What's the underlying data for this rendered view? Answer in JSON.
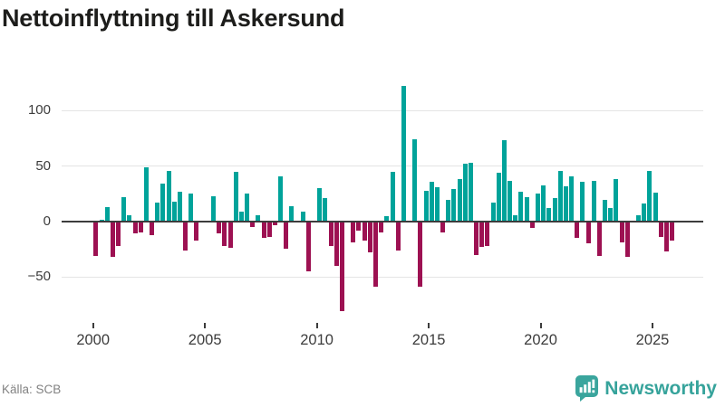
{
  "title": "Nettoinflyttning till Askersund",
  "source": "Källa: SCB",
  "brand": {
    "name": "Newsworthy"
  },
  "colors": {
    "positive_bar": "#00a39a",
    "negative_bar": "#9d1152",
    "axis": "#3c3c3c",
    "gridline": "#e4e4e4",
    "tick_label": "#3c3c3c",
    "title_text": "#1d1d1b",
    "source_text": "#828282",
    "brand_teal": "#3aa59d",
    "background": "#ffffff"
  },
  "chart_data": {
    "type": "bar",
    "title": "Nettoinflyttning till Askersund",
    "frequency": "quarterly",
    "start": "2000-Q1",
    "end": "2025-Q4",
    "grid": "horizontal",
    "legend": "none",
    "ylim": [
      -85,
      130
    ],
    "yticks": [
      {
        "value": 100,
        "label": "100"
      },
      {
        "value": 50,
        "label": "50"
      },
      {
        "value": 0,
        "label": "0"
      },
      {
        "value": -50,
        "label": "−50"
      }
    ],
    "xticks": [
      {
        "value": 2000,
        "label": "2000"
      },
      {
        "value": 2005,
        "label": "2005"
      },
      {
        "value": 2010,
        "label": "2010"
      },
      {
        "value": 2015,
        "label": "2015"
      },
      {
        "value": 2020,
        "label": "2020"
      },
      {
        "value": 2025,
        "label": "2025"
      }
    ],
    "values": [
      -30,
      2,
      13,
      -31,
      -21,
      22,
      6,
      -10,
      -9,
      49,
      -11,
      17,
      34,
      46,
      18,
      27,
      -25,
      25,
      -16,
      0,
      0,
      23,
      -10,
      -21,
      -23,
      45,
      9,
      25,
      -4,
      6,
      -14,
      -13,
      -2,
      41,
      -24,
      14,
      0,
      9,
      -44,
      0,
      30,
      21,
      -21,
      -39,
      -80,
      0,
      -18,
      -7,
      -16,
      -27,
      -58,
      -9,
      5,
      45,
      -25,
      122,
      0,
      74,
      -58,
      28,
      36,
      31,
      -9,
      20,
      29,
      38,
      52,
      53,
      -29,
      -22,
      -21,
      17,
      44,
      73,
      37,
      6,
      27,
      22,
      -5,
      25,
      33,
      12,
      21,
      46,
      32,
      41,
      -14,
      36,
      -19,
      37,
      -30,
      20,
      12,
      38,
      -18,
      -31,
      0,
      6,
      16,
      46,
      26,
      -13,
      -26,
      -16
    ]
  }
}
